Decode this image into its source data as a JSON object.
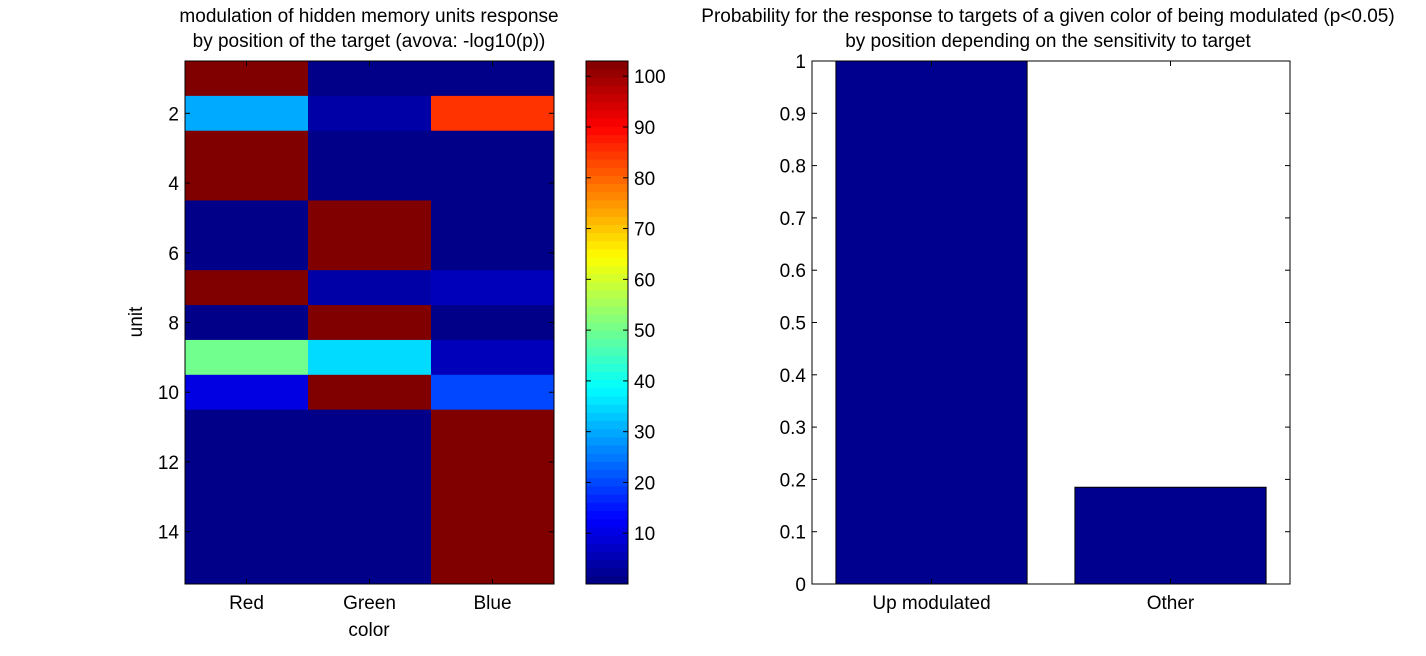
{
  "chart_data": [
    {
      "type": "heatmap",
      "title_lines": [
        "modulation of hidden memory units response",
        "by position of the target (avova: -log10(p))"
      ],
      "xlabel": "color",
      "ylabel": "unit",
      "x_categories": [
        "Red",
        "Green",
        "Blue"
      ],
      "y_ticks": [
        2,
        4,
        6,
        8,
        10,
        12,
        14
      ],
      "rows": 15,
      "values": [
        [
          103,
          1,
          1
        ],
        [
          30,
          4,
          85
        ],
        [
          103,
          1,
          1
        ],
        [
          103,
          1,
          1
        ],
        [
          1,
          103,
          1
        ],
        [
          1,
          103,
          1
        ],
        [
          103,
          4,
          6
        ],
        [
          1,
          103,
          1
        ],
        [
          50,
          35,
          6
        ],
        [
          10,
          103,
          20
        ],
        [
          1,
          1,
          103
        ],
        [
          1,
          1,
          103
        ],
        [
          1,
          1,
          103
        ],
        [
          1,
          1,
          103
        ],
        [
          1,
          1,
          103
        ]
      ],
      "colorbar": {
        "colormap": "jet",
        "range": [
          0,
          103
        ],
        "ticks": [
          10,
          20,
          30,
          40,
          50,
          60,
          70,
          80,
          90,
          100
        ]
      }
    },
    {
      "type": "bar",
      "title_lines": [
        "Probability for the response to targets of a given color of being modulated (p<0.05)",
        "by position depending on the sensitivity to target"
      ],
      "categories": [
        "Up modulated",
        "Other"
      ],
      "values": [
        1.0,
        0.185
      ],
      "bar_color": "#00008f",
      "ylim": [
        0,
        1
      ],
      "yticks": [
        0,
        0.1,
        0.2,
        0.3,
        0.4,
        0.5,
        0.6,
        0.7,
        0.8,
        0.9,
        1
      ]
    }
  ]
}
